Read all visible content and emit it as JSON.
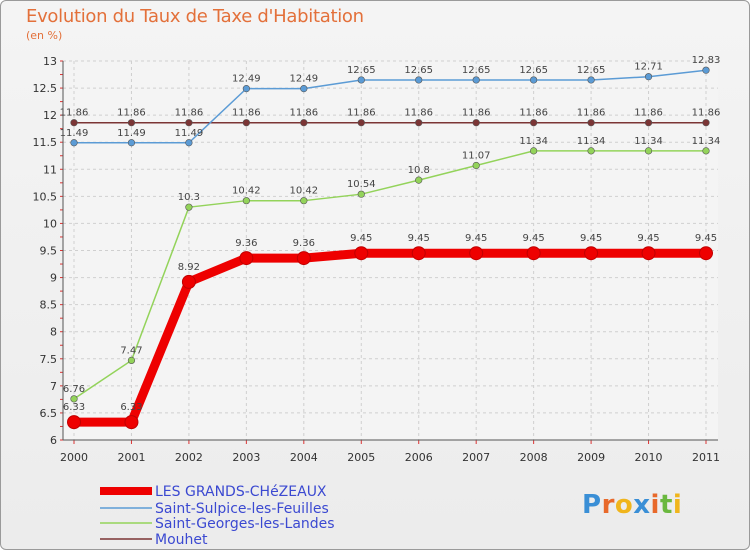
{
  "chart_data": {
    "type": "line",
    "title": "Evolution du Taux de Taxe d'Habitation",
    "subtitle": "(en %)",
    "x": [
      "2000",
      "2001",
      "2002",
      "2003",
      "2004",
      "2005",
      "2006",
      "2007",
      "2008",
      "2009",
      "2010",
      "2011"
    ],
    "ylim": [
      6,
      13
    ],
    "yticks": [
      6,
      6.5,
      7,
      7.5,
      8,
      8.5,
      9,
      9.5,
      10,
      10.5,
      11,
      11.5,
      12,
      12.5,
      13
    ],
    "ytick_labels": [
      "6",
      "6.5",
      "7",
      "7.5",
      "8",
      "8.5",
      "9",
      "9.5",
      "10",
      "10.5",
      "11",
      "11.5",
      "12",
      "12.5",
      "13"
    ],
    "grid": true,
    "legend_position": "bottom-left",
    "series": [
      {
        "name": "LES GRANDS-CHéZEAUX",
        "color": "#ee0000",
        "emphasis": "bold",
        "values": [
          6.33,
          6.33,
          8.92,
          9.36,
          9.36,
          9.45,
          9.45,
          9.45,
          9.45,
          9.45,
          9.45,
          9.45
        ],
        "labels": [
          "6.33",
          "6.33",
          "8.92",
          "9.36",
          "9.36",
          "9.45",
          "9.45",
          "9.45",
          "9.45",
          "9.45",
          "9.45",
          "9.45"
        ]
      },
      {
        "name": "Saint-Sulpice-les-Feuilles",
        "color": "#5b9bd5",
        "emphasis": "thin",
        "values": [
          11.49,
          11.49,
          11.49,
          12.49,
          12.49,
          12.65,
          12.65,
          12.65,
          12.65,
          12.65,
          12.71,
          12.83
        ],
        "labels": [
          "11.49",
          "11.49",
          "11.49",
          "12.49",
          "12.49",
          "12.65",
          "12.65",
          "12.65",
          "12.65",
          "12.65",
          "12.71",
          "12.83"
        ]
      },
      {
        "name": "Saint-Georges-les-Landes",
        "color": "#93d35a",
        "emphasis": "thin",
        "values": [
          6.76,
          7.47,
          10.3,
          10.42,
          10.42,
          10.54,
          10.8,
          11.07,
          11.34,
          11.34,
          11.34,
          11.34
        ],
        "labels": [
          "6.76",
          "7.47",
          "10.3",
          "10.42",
          "10.42",
          "10.54",
          "10.8",
          "11.07",
          "11.34",
          "11.34",
          "11.34",
          "11.34"
        ]
      },
      {
        "name": "Mouhet",
        "color": "#7b3535",
        "emphasis": "thin",
        "values": [
          11.86,
          11.86,
          11.86,
          11.86,
          11.86,
          11.86,
          11.86,
          11.86,
          11.86,
          11.86,
          11.86,
          11.86
        ],
        "labels": [
          "11.86",
          "11.86",
          "11.86",
          "11.86",
          "11.86",
          "11.86",
          "11.86",
          "11.86",
          "11.86",
          "11.86",
          "11.86",
          "11.86"
        ]
      }
    ]
  },
  "logo": {
    "letters": [
      "P",
      "r",
      "o",
      "x",
      "i",
      "t",
      "i"
    ],
    "colors": [
      "#3a8fd6",
      "#e8692a",
      "#f0b51c",
      "#3a8fd6",
      "#e8692a",
      "#6ab83f",
      "#f0b51c"
    ]
  }
}
